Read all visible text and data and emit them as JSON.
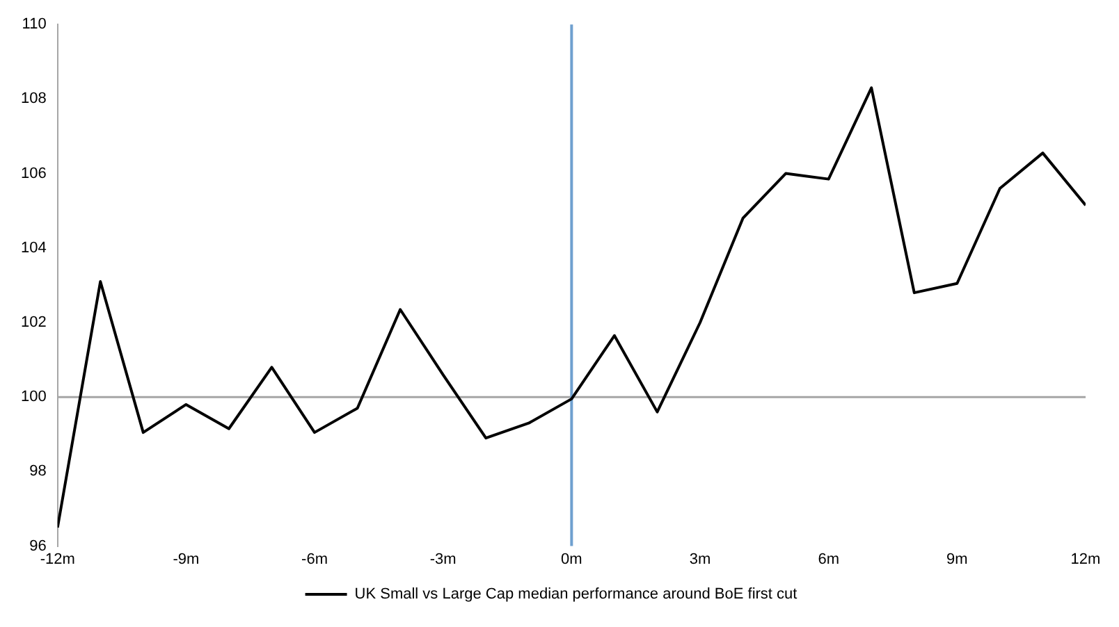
{
  "chart_data": {
    "type": "line",
    "x": [
      -12,
      -11,
      -10,
      -9,
      -8,
      -7,
      -6,
      -5,
      -4,
      -3,
      -2,
      -1,
      0,
      1,
      2,
      3,
      4,
      5,
      6,
      7,
      8,
      9,
      10,
      11,
      12
    ],
    "series": [
      {
        "name": "UK Small vs Large Cap median performance around BoE first cut",
        "color": "#000000",
        "values": [
          96.5,
          103.1,
          99.05,
          99.8,
          99.15,
          100.8,
          99.05,
          99.7,
          102.35,
          100.6,
          98.9,
          99.3,
          99.95,
          101.65,
          99.6,
          102.0,
          104.8,
          106.0,
          105.85,
          108.3,
          102.8,
          103.05,
          105.6,
          106.55,
          105.15
        ]
      }
    ],
    "xlim": [
      -12,
      12
    ],
    "xticks": [
      {
        "value": -12,
        "label": "-12m"
      },
      {
        "value": -9,
        "label": "-9m"
      },
      {
        "value": -6,
        "label": "-6m"
      },
      {
        "value": -3,
        "label": "-3m"
      },
      {
        "value": 0,
        "label": "0m"
      },
      {
        "value": 3,
        "label": "3m"
      },
      {
        "value": 6,
        "label": "6m"
      },
      {
        "value": 9,
        "label": "9m"
      },
      {
        "value": 12,
        "label": "12m"
      }
    ],
    "ylim": [
      96,
      110
    ],
    "yticks": [
      96,
      98,
      100,
      102,
      104,
      106,
      108,
      110
    ],
    "ref_lines": [
      {
        "axis": "y",
        "value": 100,
        "color": "#a6a6a6"
      },
      {
        "axis": "x",
        "value": 0,
        "color": "#6fa0cf"
      }
    ],
    "grid": false,
    "legend": "bottom",
    "marker": "none",
    "line_style": "solid"
  }
}
